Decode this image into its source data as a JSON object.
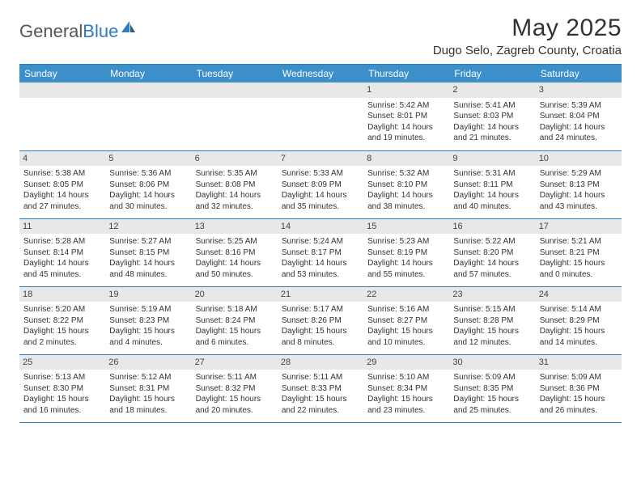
{
  "logo": {
    "text1": "General",
    "text2": "Blue"
  },
  "title": "May 2025",
  "location": "Dugo Selo, Zagreb County, Croatia",
  "header_bg": "#3d8fc9",
  "border_color": "#2f7bbf",
  "daynum_bg": "#e8e8e8",
  "weekdays": [
    "Sunday",
    "Monday",
    "Tuesday",
    "Wednesday",
    "Thursday",
    "Friday",
    "Saturday"
  ],
  "weeks": [
    [
      {
        "n": "",
        "sr": "",
        "ss": "",
        "dl": ""
      },
      {
        "n": "",
        "sr": "",
        "ss": "",
        "dl": ""
      },
      {
        "n": "",
        "sr": "",
        "ss": "",
        "dl": ""
      },
      {
        "n": "",
        "sr": "",
        "ss": "",
        "dl": ""
      },
      {
        "n": "1",
        "sr": "Sunrise: 5:42 AM",
        "ss": "Sunset: 8:01 PM",
        "dl": "Daylight: 14 hours and 19 minutes."
      },
      {
        "n": "2",
        "sr": "Sunrise: 5:41 AM",
        "ss": "Sunset: 8:03 PM",
        "dl": "Daylight: 14 hours and 21 minutes."
      },
      {
        "n": "3",
        "sr": "Sunrise: 5:39 AM",
        "ss": "Sunset: 8:04 PM",
        "dl": "Daylight: 14 hours and 24 minutes."
      }
    ],
    [
      {
        "n": "4",
        "sr": "Sunrise: 5:38 AM",
        "ss": "Sunset: 8:05 PM",
        "dl": "Daylight: 14 hours and 27 minutes."
      },
      {
        "n": "5",
        "sr": "Sunrise: 5:36 AM",
        "ss": "Sunset: 8:06 PM",
        "dl": "Daylight: 14 hours and 30 minutes."
      },
      {
        "n": "6",
        "sr": "Sunrise: 5:35 AM",
        "ss": "Sunset: 8:08 PM",
        "dl": "Daylight: 14 hours and 32 minutes."
      },
      {
        "n": "7",
        "sr": "Sunrise: 5:33 AM",
        "ss": "Sunset: 8:09 PM",
        "dl": "Daylight: 14 hours and 35 minutes."
      },
      {
        "n": "8",
        "sr": "Sunrise: 5:32 AM",
        "ss": "Sunset: 8:10 PM",
        "dl": "Daylight: 14 hours and 38 minutes."
      },
      {
        "n": "9",
        "sr": "Sunrise: 5:31 AM",
        "ss": "Sunset: 8:11 PM",
        "dl": "Daylight: 14 hours and 40 minutes."
      },
      {
        "n": "10",
        "sr": "Sunrise: 5:29 AM",
        "ss": "Sunset: 8:13 PM",
        "dl": "Daylight: 14 hours and 43 minutes."
      }
    ],
    [
      {
        "n": "11",
        "sr": "Sunrise: 5:28 AM",
        "ss": "Sunset: 8:14 PM",
        "dl": "Daylight: 14 hours and 45 minutes."
      },
      {
        "n": "12",
        "sr": "Sunrise: 5:27 AM",
        "ss": "Sunset: 8:15 PM",
        "dl": "Daylight: 14 hours and 48 minutes."
      },
      {
        "n": "13",
        "sr": "Sunrise: 5:25 AM",
        "ss": "Sunset: 8:16 PM",
        "dl": "Daylight: 14 hours and 50 minutes."
      },
      {
        "n": "14",
        "sr": "Sunrise: 5:24 AM",
        "ss": "Sunset: 8:17 PM",
        "dl": "Daylight: 14 hours and 53 minutes."
      },
      {
        "n": "15",
        "sr": "Sunrise: 5:23 AM",
        "ss": "Sunset: 8:19 PM",
        "dl": "Daylight: 14 hours and 55 minutes."
      },
      {
        "n": "16",
        "sr": "Sunrise: 5:22 AM",
        "ss": "Sunset: 8:20 PM",
        "dl": "Daylight: 14 hours and 57 minutes."
      },
      {
        "n": "17",
        "sr": "Sunrise: 5:21 AM",
        "ss": "Sunset: 8:21 PM",
        "dl": "Daylight: 15 hours and 0 minutes."
      }
    ],
    [
      {
        "n": "18",
        "sr": "Sunrise: 5:20 AM",
        "ss": "Sunset: 8:22 PM",
        "dl": "Daylight: 15 hours and 2 minutes."
      },
      {
        "n": "19",
        "sr": "Sunrise: 5:19 AM",
        "ss": "Sunset: 8:23 PM",
        "dl": "Daylight: 15 hours and 4 minutes."
      },
      {
        "n": "20",
        "sr": "Sunrise: 5:18 AM",
        "ss": "Sunset: 8:24 PM",
        "dl": "Daylight: 15 hours and 6 minutes."
      },
      {
        "n": "21",
        "sr": "Sunrise: 5:17 AM",
        "ss": "Sunset: 8:26 PM",
        "dl": "Daylight: 15 hours and 8 minutes."
      },
      {
        "n": "22",
        "sr": "Sunrise: 5:16 AM",
        "ss": "Sunset: 8:27 PM",
        "dl": "Daylight: 15 hours and 10 minutes."
      },
      {
        "n": "23",
        "sr": "Sunrise: 5:15 AM",
        "ss": "Sunset: 8:28 PM",
        "dl": "Daylight: 15 hours and 12 minutes."
      },
      {
        "n": "24",
        "sr": "Sunrise: 5:14 AM",
        "ss": "Sunset: 8:29 PM",
        "dl": "Daylight: 15 hours and 14 minutes."
      }
    ],
    [
      {
        "n": "25",
        "sr": "Sunrise: 5:13 AM",
        "ss": "Sunset: 8:30 PM",
        "dl": "Daylight: 15 hours and 16 minutes."
      },
      {
        "n": "26",
        "sr": "Sunrise: 5:12 AM",
        "ss": "Sunset: 8:31 PM",
        "dl": "Daylight: 15 hours and 18 minutes."
      },
      {
        "n": "27",
        "sr": "Sunrise: 5:11 AM",
        "ss": "Sunset: 8:32 PM",
        "dl": "Daylight: 15 hours and 20 minutes."
      },
      {
        "n": "28",
        "sr": "Sunrise: 5:11 AM",
        "ss": "Sunset: 8:33 PM",
        "dl": "Daylight: 15 hours and 22 minutes."
      },
      {
        "n": "29",
        "sr": "Sunrise: 5:10 AM",
        "ss": "Sunset: 8:34 PM",
        "dl": "Daylight: 15 hours and 23 minutes."
      },
      {
        "n": "30",
        "sr": "Sunrise: 5:09 AM",
        "ss": "Sunset: 8:35 PM",
        "dl": "Daylight: 15 hours and 25 minutes."
      },
      {
        "n": "31",
        "sr": "Sunrise: 5:09 AM",
        "ss": "Sunset: 8:36 PM",
        "dl": "Daylight: 15 hours and 26 minutes."
      }
    ]
  ]
}
